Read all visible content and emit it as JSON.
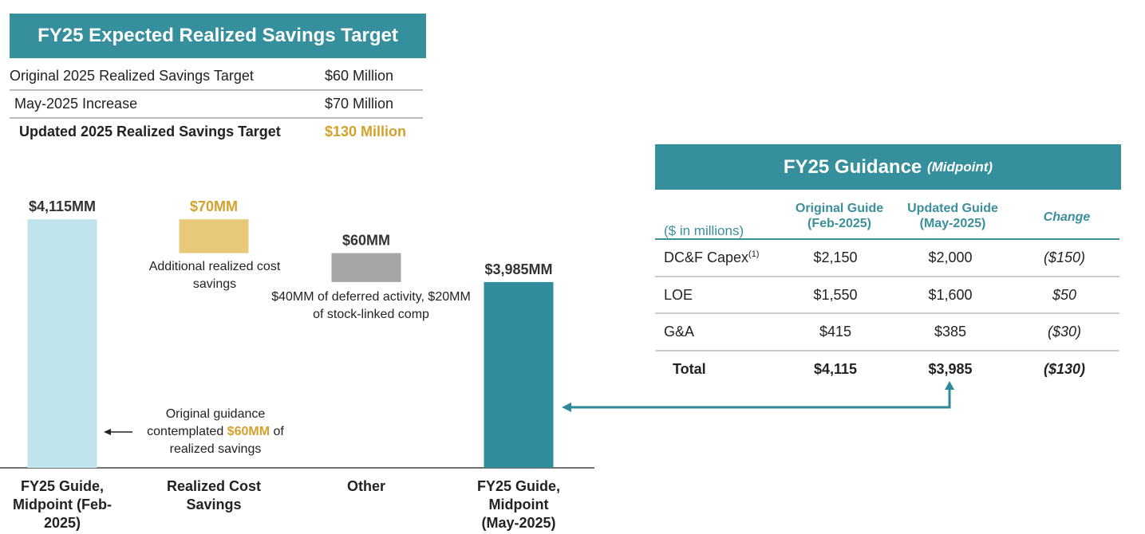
{
  "savings_table": {
    "title": "FY25 Expected Realized Savings Target",
    "rows": [
      [
        "Original 2025 Realized Savings Target",
        "$60 Million"
      ],
      [
        "May-2025 Increase",
        "$70 Million"
      ],
      [
        "Updated 2025 Realized Savings Target",
        "$130 Million"
      ]
    ]
  },
  "guidance_table": {
    "title": "FY25 Guidance",
    "subtitle": "(Midpoint)",
    "unit_label": "($ in millions)",
    "columns": [
      "Original Guide (Feb-2025)",
      "Updated Guide (May-2025)",
      "Change"
    ],
    "rows": [
      {
        "label": "DC&F Capex",
        "footnote": "(1)",
        "cells": [
          "$2,150",
          "$2,000",
          "($150)"
        ]
      },
      {
        "label": "LOE",
        "cells": [
          "$1,550",
          "$1,600",
          "$50"
        ]
      },
      {
        "label": "G&A",
        "cells": [
          "$415",
          "$385",
          "($30)"
        ]
      },
      {
        "label": "Total",
        "cells": [
          "$4,115",
          "$3,985",
          "($130)"
        ]
      }
    ]
  },
  "chart_data": {
    "type": "waterfall",
    "categories": [
      "FY25 Guide, Midpoint (Feb-2025)",
      "Realized Cost Savings",
      "Other",
      "FY25 Guide, Midpoint (May-2025)"
    ],
    "values": [
      4115,
      70,
      60,
      3985
    ],
    "value_labels": [
      "$4,115MM",
      "$70MM",
      "$60MM",
      "$3,985MM"
    ],
    "measure": [
      "total",
      "decrease",
      "decrease",
      "total"
    ],
    "colors": [
      "#bfe4eb",
      "#e8c879",
      "#a6a6a6",
      "#318d9b"
    ],
    "label_colors": [
      "#333333",
      "#d4a22c",
      "#333333",
      "#333333"
    ],
    "ylim": [
      3600,
      4150
    ],
    "annotations": [
      "Additional realized cost savings",
      "$40MM of deferred activity, $20MM of stock-linked comp"
    ],
    "note": {
      "before": "Original guidance contemplated",
      "highlight": "$60MM",
      "after": "of realized savings"
    }
  }
}
